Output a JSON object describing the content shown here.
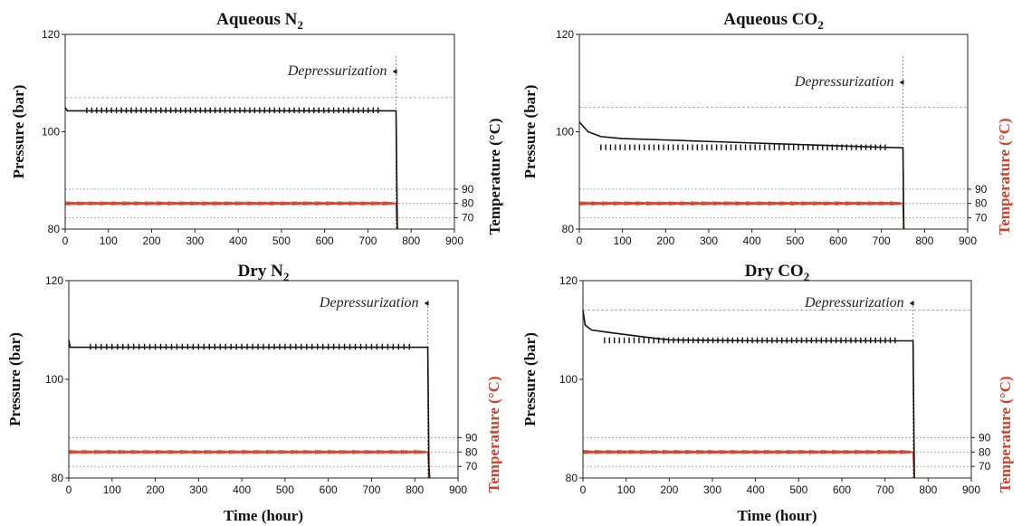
{
  "colors": {
    "pressure": "#111111",
    "temperature": "#d0402a",
    "grid": "#9a9a9a"
  },
  "chart_data": [
    {
      "type": "line",
      "title_main": "Aqueous N",
      "title_sub": "2",
      "xlabel": "",
      "ylabel": "Pressure (bar)",
      "y2label": "Temperature (°C)",
      "y2label_color": "#111111",
      "xlim": [
        0,
        900
      ],
      "ylim": [
        80,
        120
      ],
      "xticks": [
        0,
        100,
        200,
        300,
        400,
        500,
        600,
        700,
        800,
        900
      ],
      "yticks": [
        80,
        100,
        120
      ],
      "y2ticks": [
        70,
        80,
        90
      ],
      "annotation": "Depressurization",
      "depress_x": 765,
      "marker_line_y": 107,
      "series": [
        {
          "name": "Pressure (bar)",
          "values": [
            [
              0,
              105
            ],
            [
              5,
              104.3
            ],
            [
              765,
              104.3
            ],
            [
              768,
              80
            ]
          ]
        },
        {
          "name": "Temperature (°C)",
          "values": [
            [
              0,
              80
            ],
            [
              765,
              80
            ],
            [
              768,
              62
            ]
          ]
        }
      ]
    },
    {
      "type": "line",
      "title_main": "Aqueous CO",
      "title_sub": "2",
      "xlabel": "",
      "ylabel": "Pressure (bar)",
      "y2label": "Temperature (°C)",
      "y2label_color": "#d0402a",
      "xlim": [
        0,
        900
      ],
      "ylim": [
        80,
        120
      ],
      "xticks": [
        0,
        100,
        200,
        300,
        400,
        500,
        600,
        700,
        800,
        900
      ],
      "yticks": [
        80,
        100,
        120
      ],
      "y2ticks": [
        70,
        80,
        90
      ],
      "annotation": "Depressurization",
      "depress_x": 750,
      "marker_line_y": 105,
      "series": [
        {
          "name": "Pressure (bar)",
          "values": [
            [
              0,
              102
            ],
            [
              20,
              100
            ],
            [
              50,
              99
            ],
            [
              100,
              98.6
            ],
            [
              200,
              98.3
            ],
            [
              300,
              98
            ],
            [
              400,
              97.7
            ],
            [
              500,
              97.4
            ],
            [
              600,
              97.1
            ],
            [
              700,
              96.8
            ],
            [
              750,
              96.7
            ],
            [
              752,
              80
            ]
          ]
        },
        {
          "name": "Temperature (°C)",
          "values": [
            [
              0,
              80
            ],
            [
              750,
              80
            ],
            [
              752,
              62
            ]
          ]
        }
      ]
    },
    {
      "type": "line",
      "title_main": "Dry N",
      "title_sub": "2",
      "xlabel": "Time (hour)",
      "ylabel": "Pressure (bar)",
      "y2label": "Temperature (°C)",
      "y2label_color": "#d0402a",
      "xlim": [
        0,
        900
      ],
      "ylim": [
        80,
        120
      ],
      "xticks": [
        0,
        100,
        200,
        300,
        400,
        500,
        600,
        700,
        800,
        900
      ],
      "yticks": [
        80,
        100,
        120
      ],
      "y2ticks": [
        70,
        80,
        90
      ],
      "annotation": "Depressurization",
      "depress_x": 830,
      "marker_line_y": null,
      "series": [
        {
          "name": "Pressure (bar)",
          "values": [
            [
              0,
              108
            ],
            [
              3,
              106.5
            ],
            [
              830,
              106.5
            ],
            [
              833,
              80
            ]
          ]
        },
        {
          "name": "Temperature (°C)",
          "values": [
            [
              0,
              80
            ],
            [
              830,
              80
            ],
            [
              835,
              62
            ]
          ]
        }
      ]
    },
    {
      "type": "line",
      "title_main": "Dry CO",
      "title_sub": "2",
      "xlabel": "Time (hour)",
      "ylabel": "Pressure (bar)",
      "y2label": "Temperature (°C)",
      "y2label_color": "#d0402a",
      "xlim": [
        0,
        900
      ],
      "ylim": [
        80,
        120
      ],
      "xticks": [
        0,
        100,
        200,
        300,
        400,
        500,
        600,
        700,
        800,
        900
      ],
      "yticks": [
        80,
        100,
        120
      ],
      "y2ticks": [
        70,
        80,
        90
      ],
      "annotation": "Depressurization",
      "depress_x": 765,
      "marker_line_y": 114,
      "series": [
        {
          "name": "Pressure (bar)",
          "values": [
            [
              0,
              114
            ],
            [
              5,
              111
            ],
            [
              20,
              110
            ],
            [
              60,
              109.5
            ],
            [
              150,
              108.5
            ],
            [
              200,
              108
            ],
            [
              400,
              107.8
            ],
            [
              765,
              107.8
            ],
            [
              768,
              80
            ]
          ]
        },
        {
          "name": "Temperature (°C)",
          "values": [
            [
              0,
              80
            ],
            [
              765,
              80
            ],
            [
              768,
              62
            ]
          ]
        }
      ]
    }
  ]
}
